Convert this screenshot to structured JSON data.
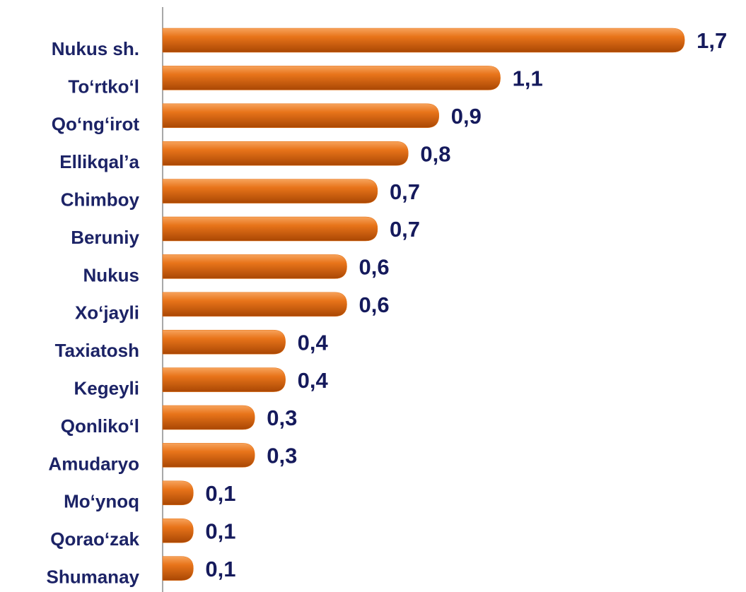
{
  "chart_data": {
    "type": "bar",
    "orientation": "horizontal",
    "categories": [
      "Nukus sh.",
      "To‘rtko‘l",
      "Qo‘ng‘irot",
      "Ellikqal’a",
      "Chimboy",
      "Beruniy",
      "Nukus",
      "Xo‘jayli",
      "Taxiatosh",
      "Kegeyli",
      "Qonliko‘l",
      "Amudaryo",
      "Mo‘ynoq",
      "Qorao‘zak",
      "Shumanay"
    ],
    "values": [
      1.7,
      1.1,
      0.9,
      0.8,
      0.7,
      0.7,
      0.6,
      0.6,
      0.4,
      0.4,
      0.3,
      0.3,
      0.1,
      0.1,
      0.1
    ],
    "value_labels": [
      "1,7",
      "1,1",
      "0,9",
      "0,8",
      "0,7",
      "0,7",
      "0,6",
      "0,6",
      "0,4",
      "0,4",
      "0,3",
      "0,3",
      "0,1",
      "0,1",
      "0,1"
    ],
    "color": "#e46c0a",
    "xlim": [
      0,
      1.9
    ]
  }
}
